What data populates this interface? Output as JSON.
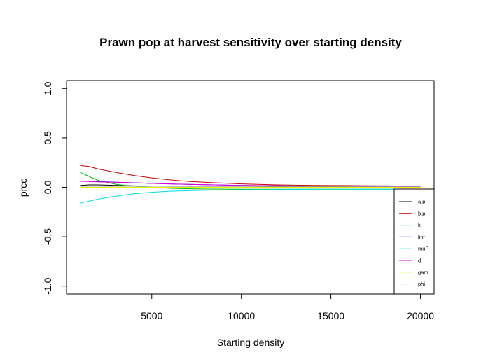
{
  "chart_data": {
    "type": "line",
    "title": "Prawn pop at harvest sensitivity over starting density",
    "xlabel": "Starting density",
    "ylabel": "prcc",
    "xlim": [
      1000,
      20000
    ],
    "ylim": [
      -1.0,
      1.0
    ],
    "x_ticks": [
      5000,
      10000,
      15000,
      20000
    ],
    "x_tick_labels": [
      "5000",
      "10000",
      "15000",
      "20000"
    ],
    "y_ticks": [
      -1.0,
      -0.5,
      0.0,
      0.5,
      1.0
    ],
    "y_tick_labels": [
      "-1.0",
      "-0.5",
      "0.0",
      "0.5",
      "1.0"
    ],
    "grid": false,
    "legend_position": "bottom-right",
    "x": [
      1000,
      1500,
      2000,
      3000,
      4000,
      5000,
      6000,
      7000,
      8000,
      10000,
      12000,
      14000,
      16000,
      18000,
      20000
    ],
    "series": [
      {
        "name": "a.p",
        "color": "#000000",
        "values": [
          0.02,
          0.025,
          0.025,
          0.02,
          0.015,
          0.012,
          0.01,
          0.01,
          0.01,
          0.01,
          0.008,
          0.008,
          0.008,
          0.008,
          0.008
        ]
      },
      {
        "name": "b.p",
        "color": "#cc0000",
        "values": [
          0.22,
          0.21,
          0.185,
          0.15,
          0.12,
          0.095,
          0.075,
          0.06,
          0.05,
          0.035,
          0.025,
          0.02,
          0.018,
          0.015,
          0.012
        ]
      },
      {
        "name": "k",
        "color": "#00bb00",
        "values": [
          0.15,
          0.11,
          0.07,
          0.03,
          0.01,
          0.0,
          -0.01,
          -0.015,
          -0.018,
          -0.02,
          -0.02,
          -0.02,
          -0.02,
          -0.02,
          -0.02
        ]
      },
      {
        "name": "linf",
        "color": "#0000cc",
        "values": [
          0.06,
          0.06,
          0.058,
          0.052,
          0.046,
          0.04,
          0.035,
          0.03,
          0.026,
          0.02,
          0.016,
          0.013,
          0.011,
          0.009,
          0.008
        ]
      },
      {
        "name": "muP",
        "color": "#00dddd",
        "values": [
          -0.16,
          -0.14,
          -0.12,
          -0.09,
          -0.065,
          -0.05,
          -0.04,
          -0.035,
          -0.03,
          -0.025,
          -0.022,
          -0.02,
          -0.02,
          -0.02,
          -0.02
        ]
      },
      {
        "name": "d",
        "color": "#dd00dd",
        "values": [
          0.06,
          0.058,
          0.055,
          0.05,
          0.045,
          0.04,
          0.035,
          0.03,
          0.026,
          0.02,
          0.016,
          0.013,
          0.011,
          0.009,
          0.008
        ]
      },
      {
        "name": "gam",
        "color": "#eeee00",
        "values": [
          0.0,
          0.0,
          0.0,
          0.0,
          0.0,
          0.0,
          0.0,
          0.0,
          0.0,
          0.0,
          0.0,
          0.0,
          0.0,
          0.0,
          0.0
        ]
      },
      {
        "name": "phi",
        "color": "#bbbbbb",
        "values": [
          0.01,
          0.01,
          0.01,
          0.01,
          0.01,
          0.01,
          0.01,
          0.01,
          0.01,
          0.01,
          0.01,
          0.01,
          0.01,
          0.01,
          0.01
        ]
      }
    ]
  }
}
